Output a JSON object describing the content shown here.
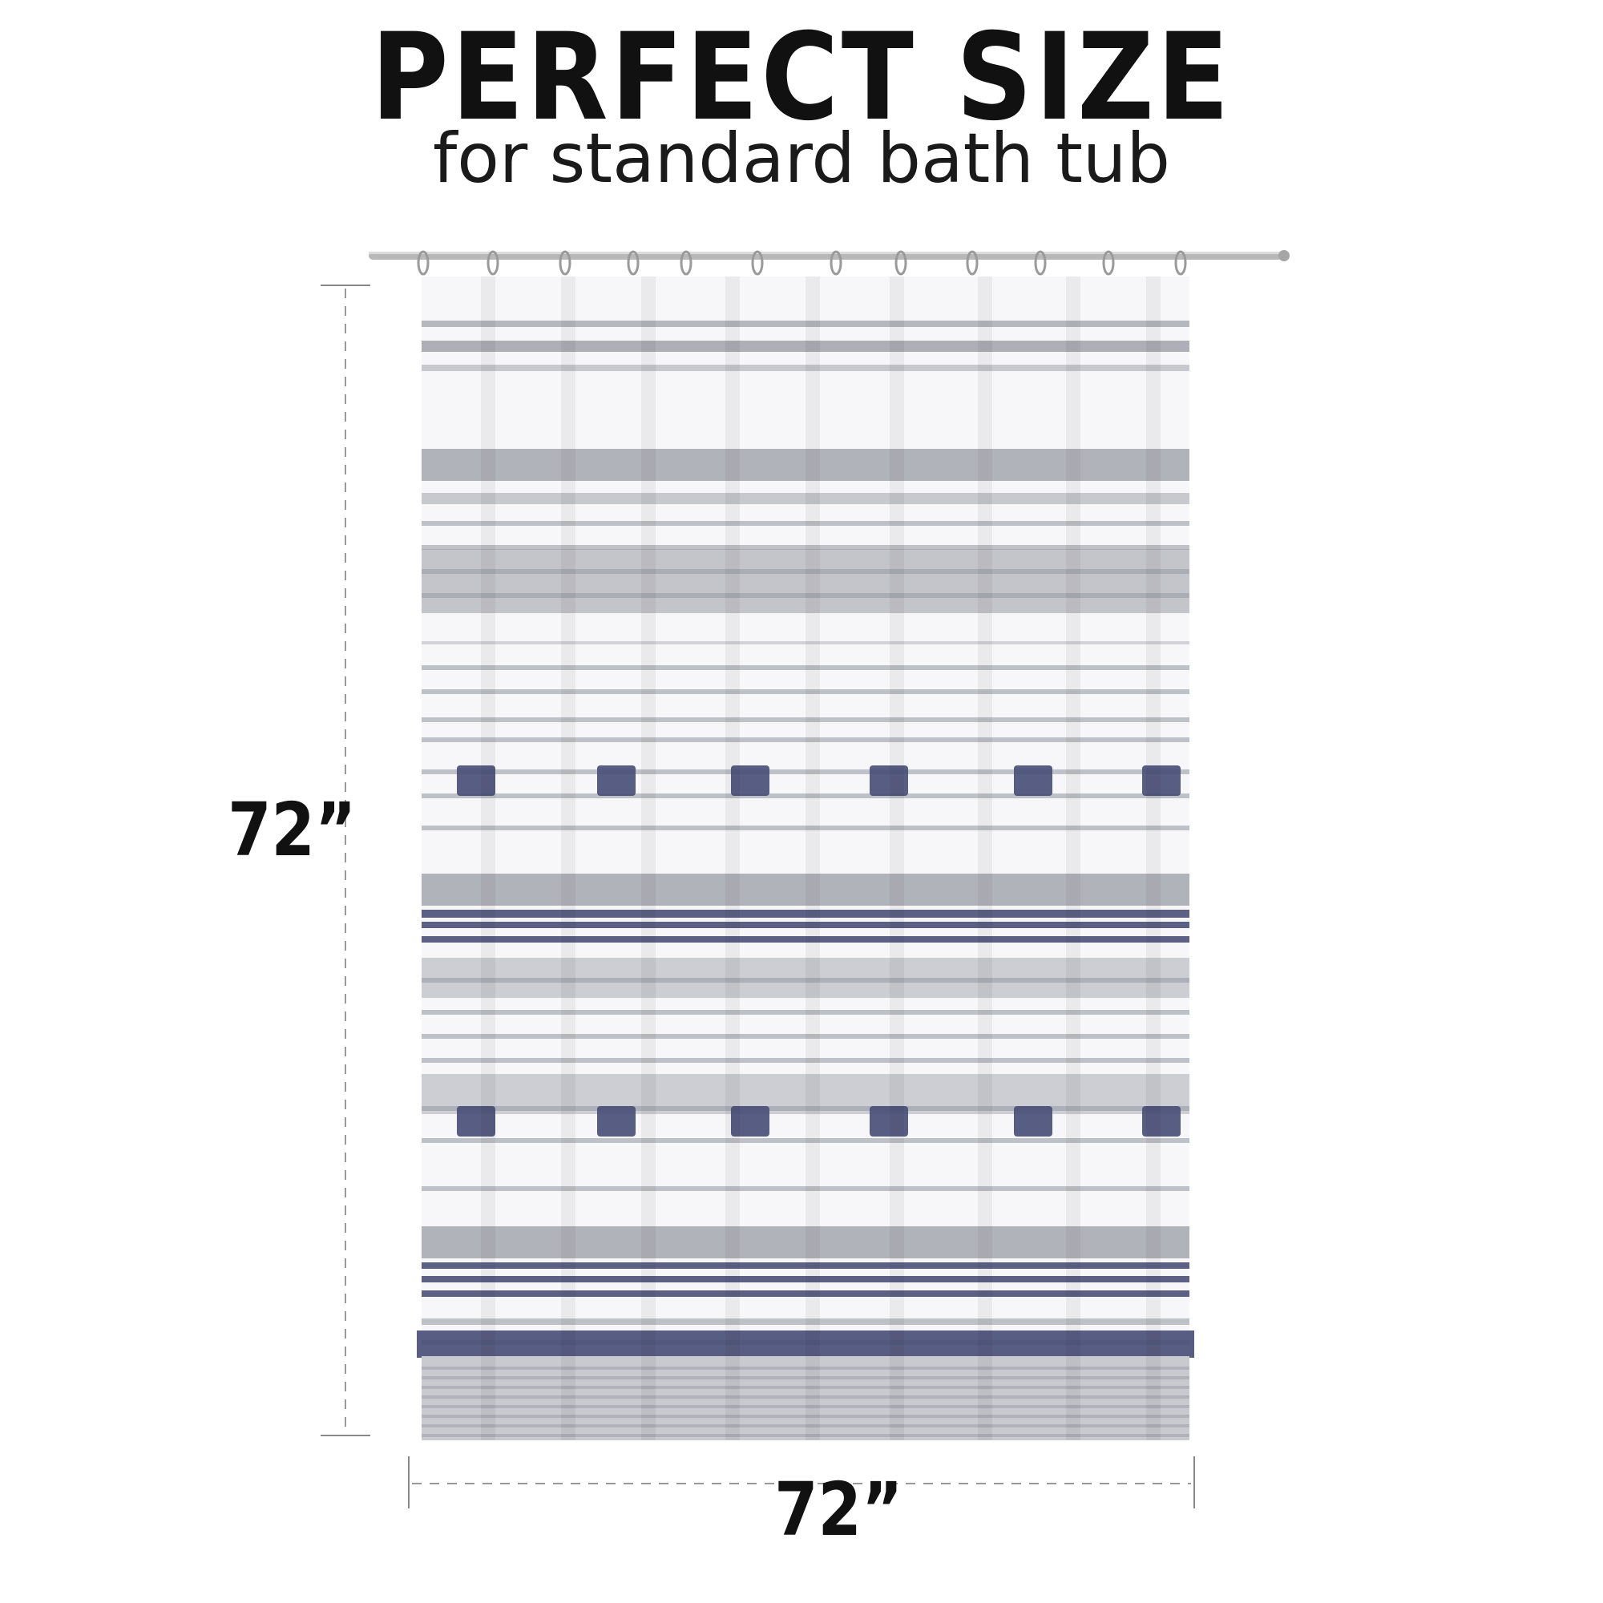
{
  "headline": "PERFECT SIZE",
  "subheadline": "for standard bath tub",
  "dimensions": {
    "height_label": "72”",
    "width_label": "72”"
  },
  "colors": {
    "curtain_base": "#f7f7f9",
    "stripe_gray": "#9a9ca6",
    "stripe_navy": "#4a4f78",
    "rod": "#b8b8b8",
    "dimension_line": "#888888"
  }
}
